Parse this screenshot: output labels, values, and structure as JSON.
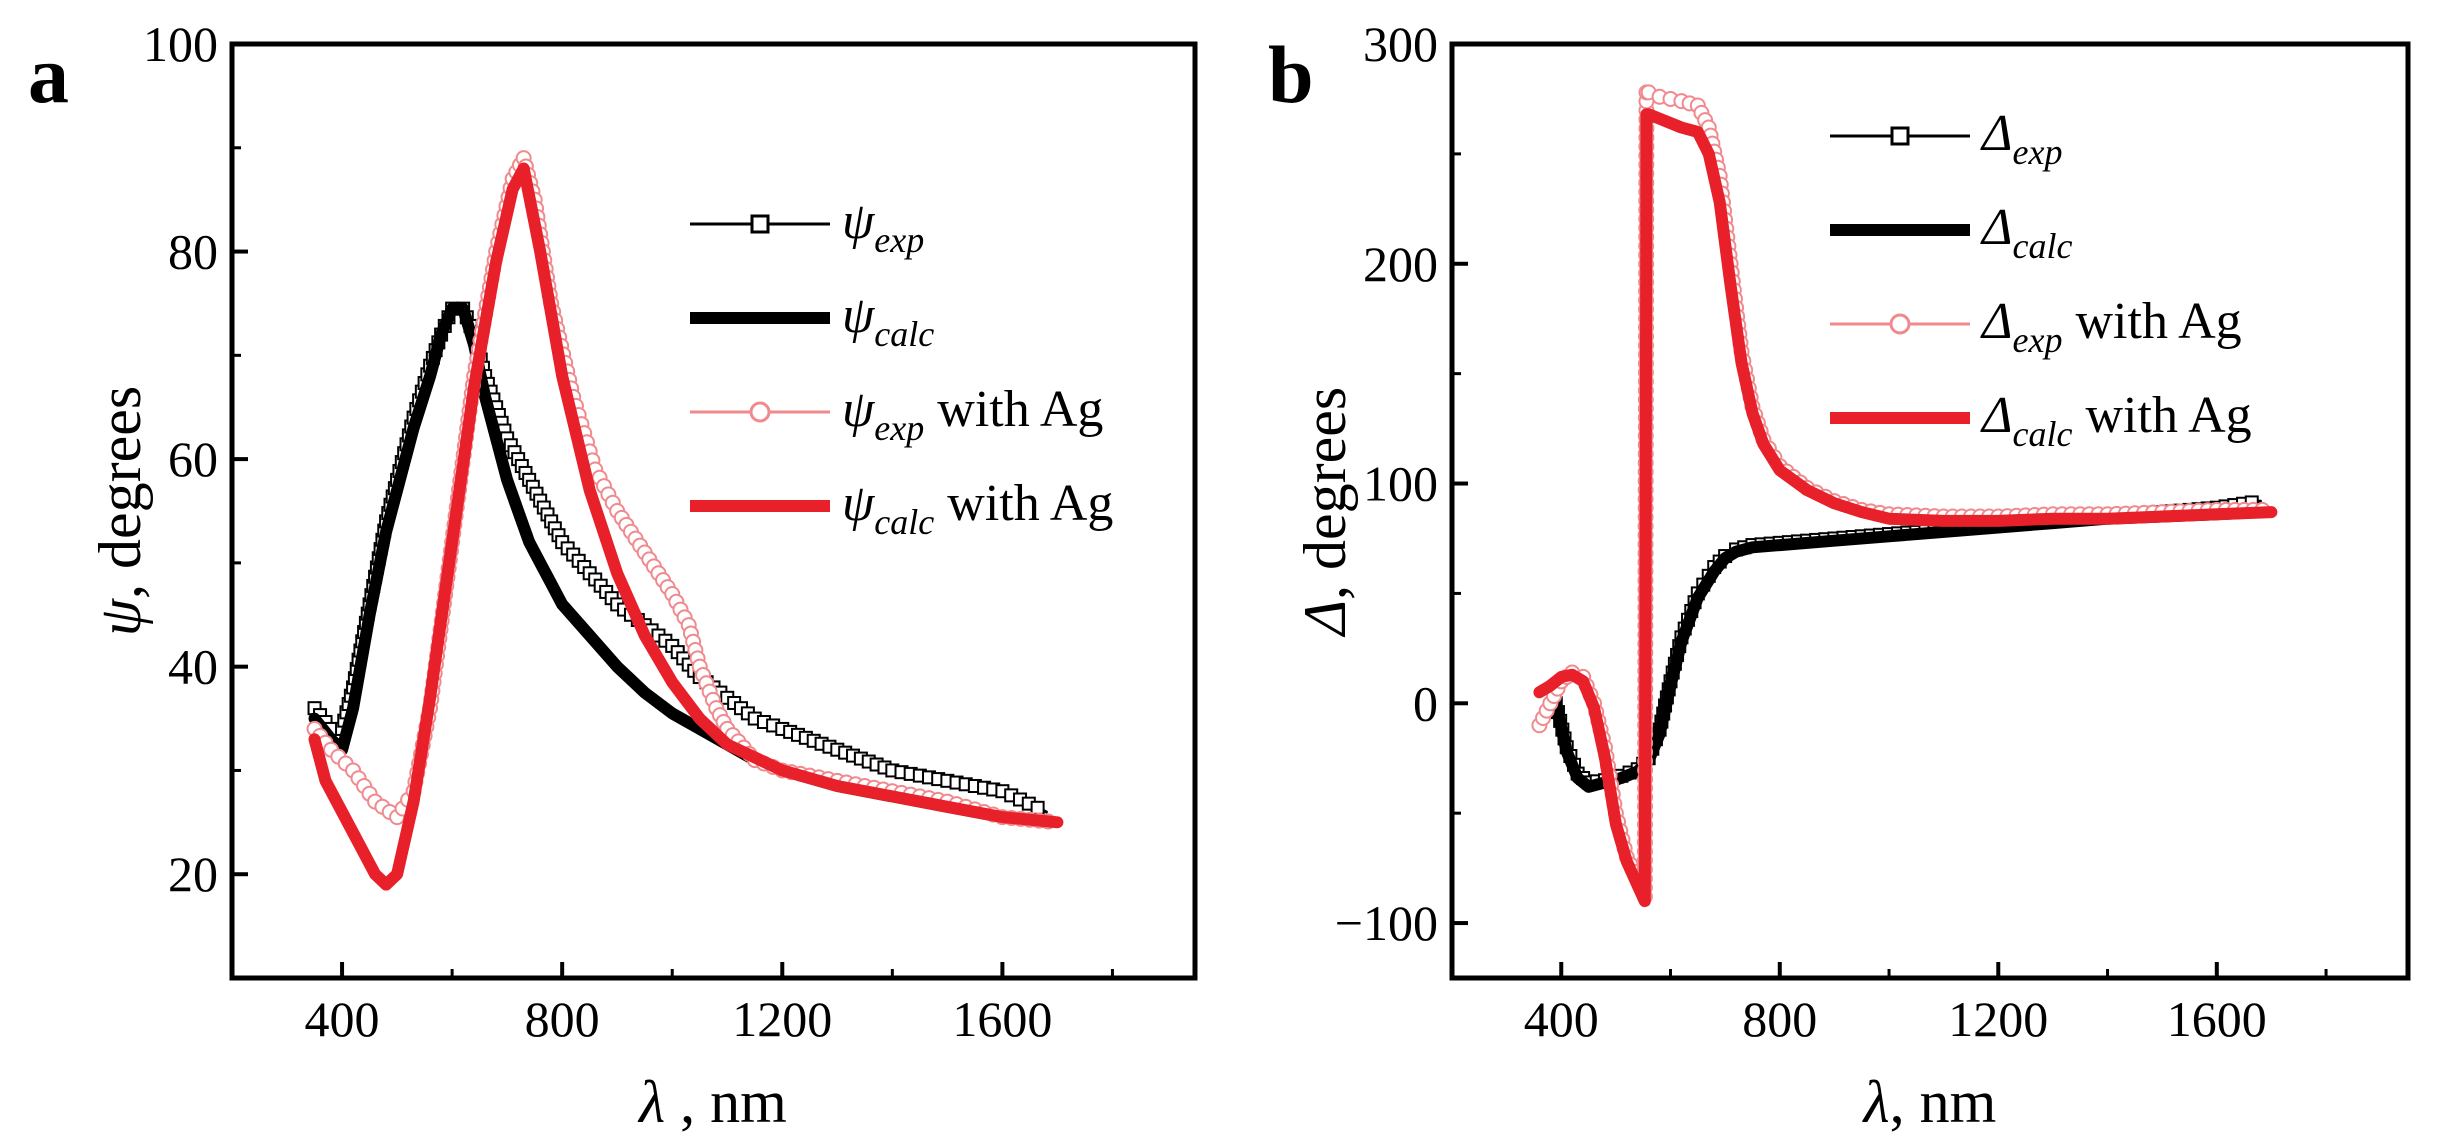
{
  "colors": {
    "black": "#000000",
    "red": "#e8202a",
    "red_light": "#f08a8e"
  },
  "chart_data": [
    {
      "type": "line",
      "panel": "a",
      "xlabel": {
        "symbol": "λ",
        "rest": " , nm"
      },
      "ylabel": {
        "symbol": "ψ",
        "rest": ", degrees"
      },
      "xlim": [
        200,
        1950
      ],
      "ylim": [
        10,
        100
      ],
      "xticks": [
        "400",
        "800",
        "1200",
        "1600"
      ],
      "yticks": [
        "20",
        "40",
        "60",
        "80",
        "100"
      ],
      "xtick_values": [
        400,
        800,
        1200,
        1600
      ],
      "ytick_values": [
        20,
        40,
        60,
        80,
        100
      ],
      "legend_position": "top-right",
      "series": [
        {
          "name": "ψ exp",
          "symbol": "ψ",
          "sub": "exp",
          "suffix": "",
          "color": "#000000",
          "marker": "square",
          "line": "thin",
          "x": [
            350,
            380,
            400,
            420,
            450,
            480,
            500,
            530,
            560,
            580,
            600,
            620,
            640,
            660,
            680,
            700,
            720,
            740,
            760,
            780,
            800,
            850,
            900,
            950,
            1000,
            1050,
            1100,
            1150,
            1200,
            1300,
            1400,
            1500,
            1600,
            1680
          ],
          "y": [
            36,
            34,
            34,
            38,
            46,
            54,
            58,
            64,
            69,
            72,
            74.5,
            74.5,
            72,
            68,
            65,
            62,
            60,
            58,
            56,
            54,
            52,
            49,
            46,
            44,
            42,
            39,
            37,
            35,
            34,
            32,
            30,
            29,
            28,
            26
          ]
        },
        {
          "name": "ψ calc",
          "symbol": "ψ",
          "sub": "calc",
          "suffix": "",
          "color": "#000000",
          "marker": "none",
          "line": "thick",
          "x": [
            350,
            380,
            400,
            420,
            450,
            480,
            500,
            530,
            560,
            580,
            600,
            620,
            640,
            660,
            680,
            700,
            720,
            740,
            760,
            780,
            800,
            850,
            900,
            950,
            1000,
            1050,
            1100,
            1150,
            1200,
            1300,
            1400,
            1500,
            1600,
            1680
          ],
          "y": [
            35,
            33,
            32,
            36,
            45,
            53,
            57,
            63,
            68,
            72,
            74.5,
            74.5,
            71,
            66,
            62,
            58,
            55,
            52,
            50,
            48,
            46,
            43,
            40,
            37.5,
            35.5,
            34,
            32.5,
            31,
            30,
            28.5,
            27.5,
            26.5,
            25.5,
            25
          ]
        },
        {
          "name": "ψ exp with Ag",
          "symbol": "ψ",
          "sub": "exp",
          "suffix": " with Ag",
          "color": "#f08a8e",
          "marker": "circle",
          "line": "thin",
          "x": [
            350,
            380,
            420,
            460,
            500,
            530,
            560,
            600,
            640,
            680,
            710,
            730,
            750,
            780,
            820,
            860,
            900,
            950,
            1000,
            1030,
            1050,
            1080,
            1100,
            1150,
            1200,
            1300,
            1400,
            1500,
            1600,
            1700
          ],
          "y": [
            34,
            32,
            30,
            27,
            25.5,
            28,
            36,
            52,
            68,
            80,
            87,
            89,
            85,
            75,
            66,
            59,
            55,
            51,
            47,
            44,
            40,
            36,
            34,
            31,
            30,
            29,
            28,
            27,
            25.5,
            25
          ]
        },
        {
          "name": "ψ calc with Ag",
          "symbol": "ψ",
          "sub": "calc",
          "suffix": " with Ag",
          "color": "#e8202a",
          "marker": "none",
          "line": "thick",
          "x": [
            350,
            370,
            400,
            430,
            460,
            480,
            500,
            530,
            560,
            600,
            640,
            680,
            710,
            730,
            760,
            800,
            850,
            900,
            950,
            1000,
            1050,
            1100,
            1200,
            1300,
            1400,
            1500,
            1600,
            1700
          ],
          "y": [
            33,
            29,
            26,
            23,
            20,
            19,
            20,
            27,
            37,
            52,
            67,
            79,
            86,
            88,
            80,
            68,
            57,
            49,
            43,
            38.5,
            35,
            32.5,
            30,
            28.5,
            27.5,
            26.5,
            25.5,
            25
          ]
        }
      ]
    },
    {
      "type": "line",
      "panel": "b",
      "xlabel": {
        "symbol": "λ",
        "rest": ", nm"
      },
      "ylabel": {
        "symbol": "Δ",
        "rest": ", degrees"
      },
      "xlim": [
        200,
        1950
      ],
      "ylim": [
        -125,
        300
      ],
      "xticks": [
        "400",
        "800",
        "1200",
        "1600"
      ],
      "yticks": [
        "−100",
        "0",
        "100",
        "200",
        "300"
      ],
      "xtick_values": [
        400,
        800,
        1200,
        1600
      ],
      "ytick_values": [
        -100,
        0,
        100,
        200,
        300
      ],
      "legend_position": "top-right",
      "series": [
        {
          "name": "Δ exp",
          "symbol": "Δ",
          "sub": "exp",
          "suffix": "",
          "color": "#000000",
          "marker": "square",
          "line": "thin",
          "x": [
            390,
            410,
            430,
            450,
            480,
            510,
            540,
            560,
            580,
            600,
            620,
            650,
            680,
            700,
            720,
            750,
            800,
            900,
            1000,
            1100,
            1200,
            1300,
            1400,
            1500,
            1600,
            1680
          ],
          "y": [
            0,
            -20,
            -32,
            -36,
            -35,
            -33,
            -30,
            -25,
            -12,
            10,
            30,
            50,
            62,
            67,
            70,
            72,
            73,
            75,
            77,
            79,
            81,
            83,
            85,
            87,
            89,
            92
          ]
        },
        {
          "name": "Δ calc",
          "symbol": "Δ",
          "sub": "calc",
          "suffix": "",
          "color": "#000000",
          "marker": "none",
          "line": "thick",
          "x": [
            390,
            410,
            430,
            450,
            480,
            510,
            540,
            560,
            580,
            600,
            620,
            650,
            680,
            700,
            720,
            750,
            800,
            900,
            1000,
            1100,
            1200,
            1300,
            1400,
            1500,
            1600,
            1680
          ],
          "y": [
            0,
            -22,
            -34,
            -38,
            -36,
            -34,
            -31,
            -26,
            -14,
            8,
            28,
            48,
            60,
            66,
            69,
            71,
            72,
            74,
            76,
            78,
            80,
            82,
            84,
            85,
            86,
            87
          ]
        },
        {
          "name": "Δ exp with Ag",
          "symbol": "Δ",
          "sub": "exp",
          "suffix": " with Ag",
          "color": "#f08a8e",
          "marker": "circle",
          "line": "thin",
          "x": [
            360,
            380,
            400,
            420,
            440,
            460,
            480,
            500,
            520,
            540,
            553,
            556,
            560,
            580,
            620,
            650,
            670,
            690,
            710,
            730,
            750,
            770,
            800,
            850,
            900,
            950,
            1000,
            1100,
            1200,
            1300,
            1400,
            1500,
            1600,
            1700
          ],
          "y": [
            -10,
            0,
            10,
            14,
            12,
            0,
            -20,
            -50,
            -70,
            -80,
            -88,
            278,
            278,
            276,
            274,
            272,
            262,
            240,
            200,
            160,
            135,
            120,
            108,
            98,
            92,
            88,
            86,
            85,
            85,
            86,
            86,
            87,
            88,
            88
          ]
        },
        {
          "name": "Δ calc with Ag",
          "symbol": "Δ",
          "sub": "calc",
          "suffix": " with Ag",
          "color": "#e8202a",
          "marker": "none",
          "line": "thick",
          "x": [
            360,
            380,
            400,
            420,
            440,
            460,
            480,
            500,
            520,
            540,
            553,
            556,
            560,
            580,
            620,
            650,
            670,
            690,
            710,
            730,
            750,
            770,
            800,
            850,
            900,
            950,
            1000,
            1100,
            1200,
            1300,
            1400,
            1500,
            1600,
            1700
          ],
          "y": [
            5,
            8,
            12,
            13,
            10,
            -2,
            -25,
            -55,
            -72,
            -83,
            -90,
            268,
            268,
            266,
            262,
            260,
            250,
            228,
            190,
            155,
            132,
            118,
            106,
            97,
            91,
            87,
            84,
            83,
            83,
            84,
            84,
            85,
            86,
            87
          ]
        }
      ]
    }
  ]
}
